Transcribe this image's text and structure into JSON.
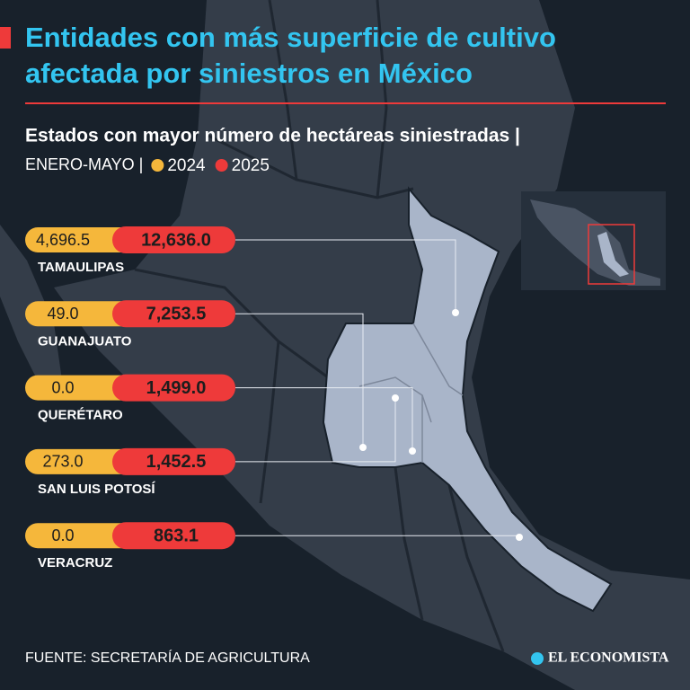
{
  "header": {
    "title": "Entidades con más superficie de cultivo afectada por siniestros en México",
    "subtitle": "Estados con mayor número de hectáreas siniestradas |",
    "period": "ENERO-MAYO |",
    "legend": [
      {
        "label": "2024",
        "color": "#f5b73b"
      },
      {
        "label": "2025",
        "color": "#ee3a3a"
      }
    ]
  },
  "rows": [
    {
      "state": "TAMAULIPAS",
      "v2024": "4,696.5",
      "v2025": "12,636.0"
    },
    {
      "state": "GUANAJUATO",
      "v2024": "49.0",
      "v2025": "7,253.5"
    },
    {
      "state": "QUERÉTARO",
      "v2024": "0.0",
      "v2025": "1,499.0"
    },
    {
      "state": "SAN LUIS POTOSÍ",
      "v2024": "273.0",
      "v2025": "1,452.5"
    },
    {
      "state": "VERACRUZ",
      "v2024": "0.0",
      "v2025": "863.1"
    }
  ],
  "footer": {
    "source": "FUENTE: SECRETARÍA DE AGRICULTURA",
    "brand": "EL ECONOMISTA"
  }
}
